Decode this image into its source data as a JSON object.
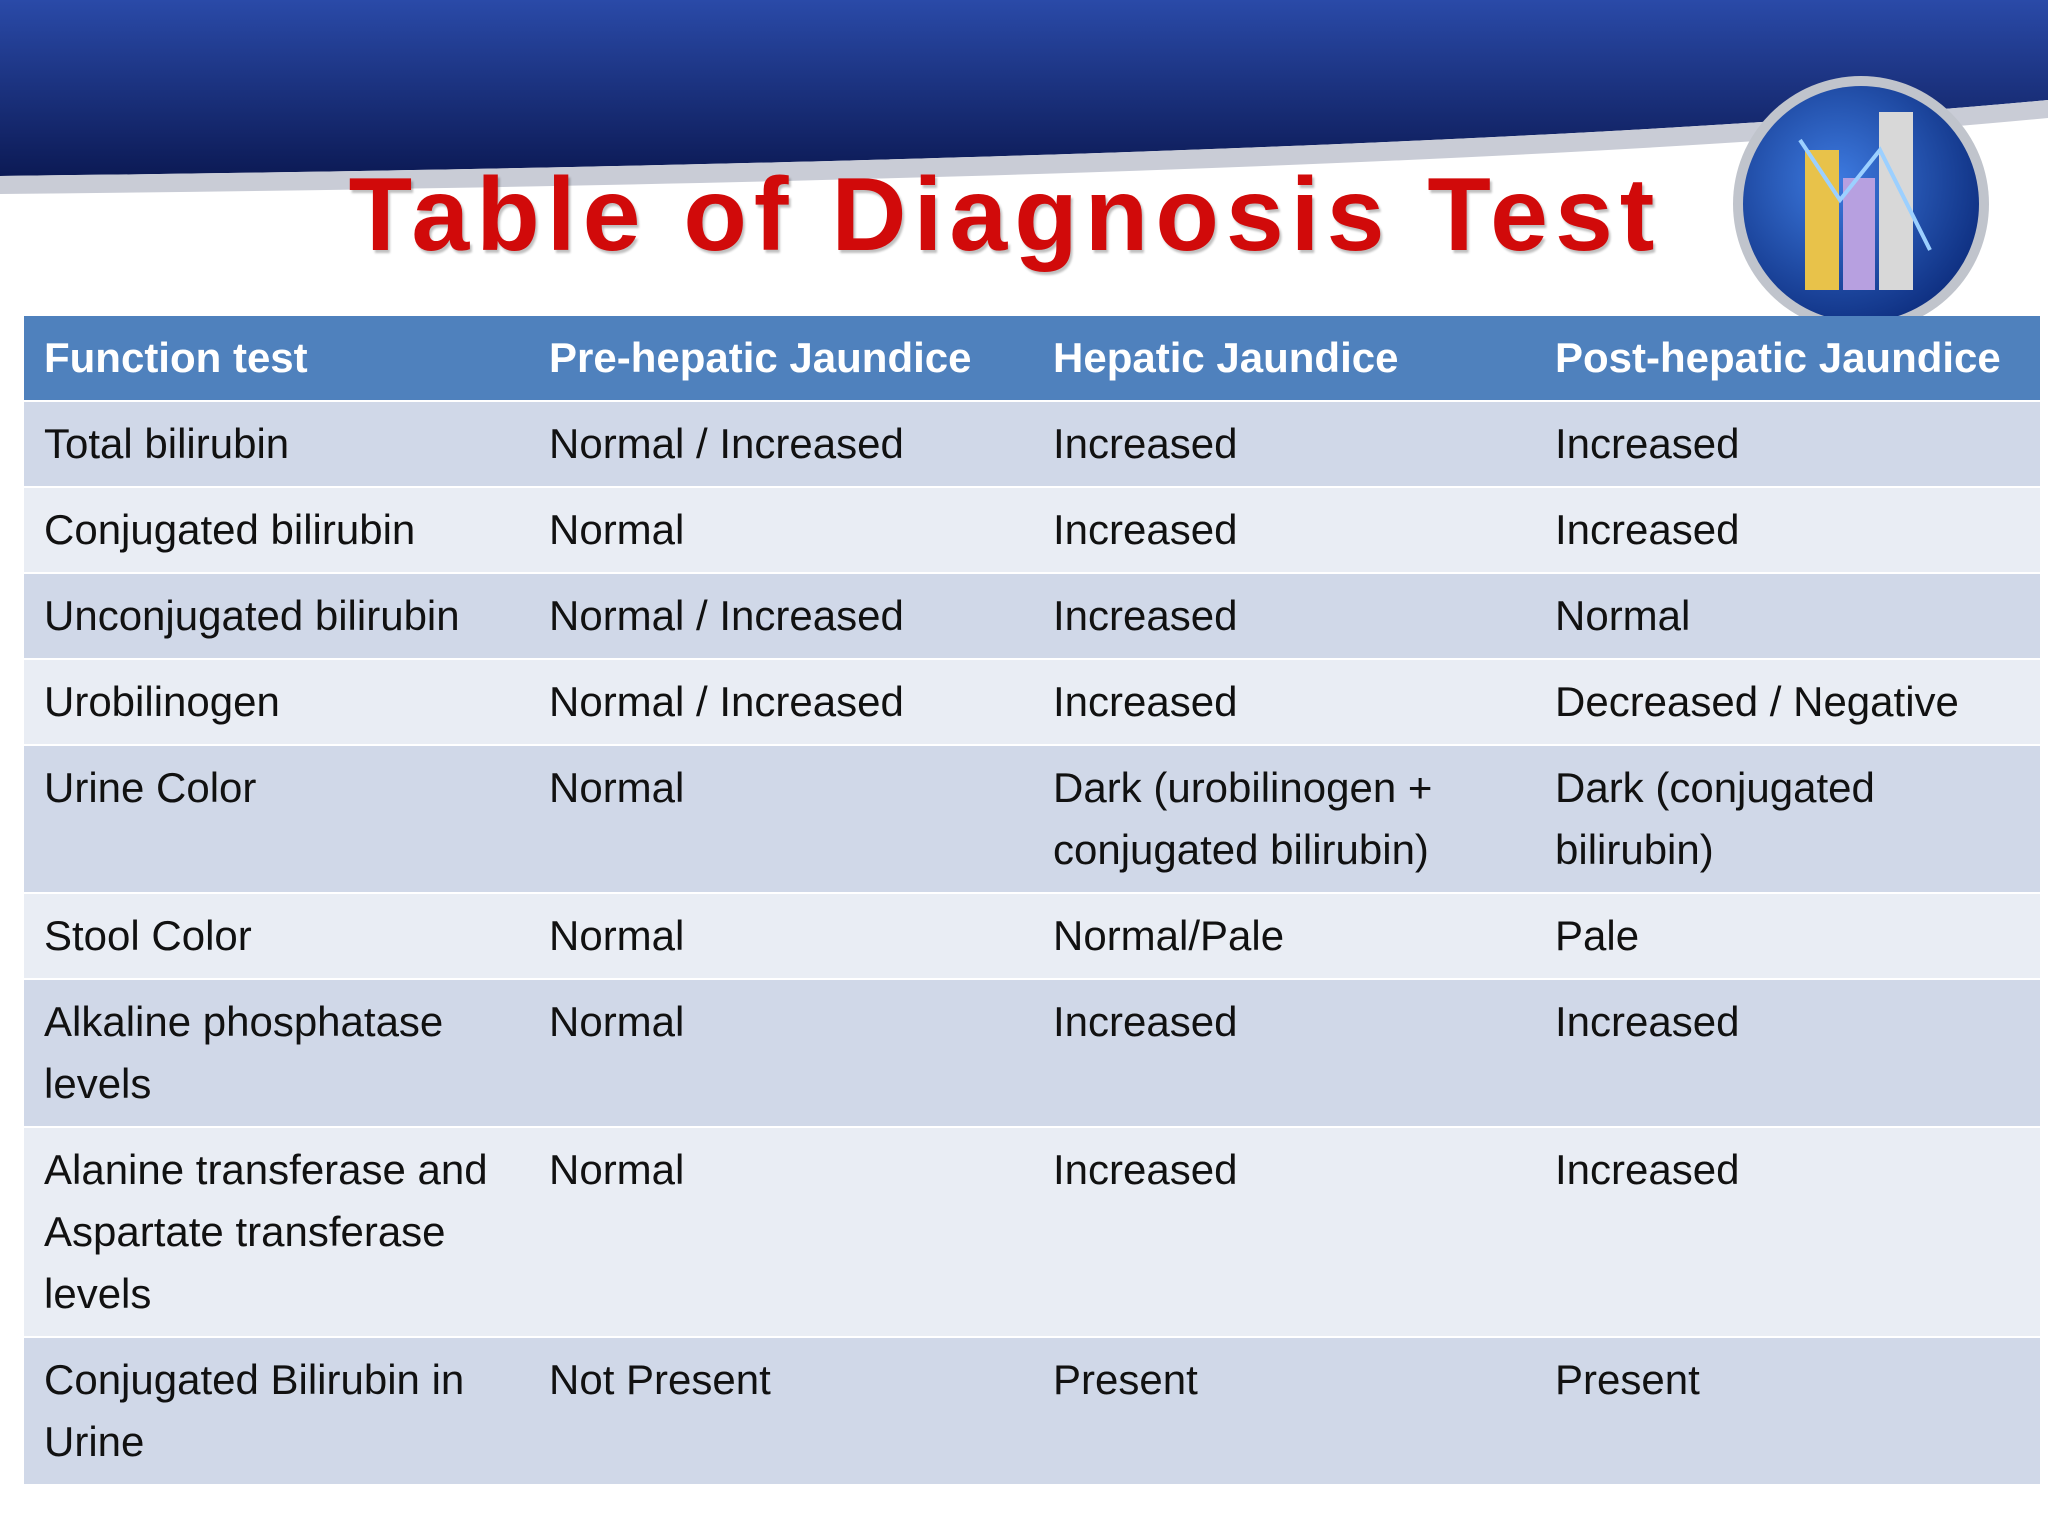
{
  "header": {
    "title": "Table of Diagnosis Test"
  },
  "table": {
    "columns": [
      "Function test",
      "Pre-hepatic Jaundice",
      "Hepatic Jaundice",
      "Post-hepatic Jaundice"
    ],
    "rows": [
      [
        "Total bilirubin",
        "Normal / Increased",
        "Increased",
        "Increased"
      ],
      [
        "Conjugated bilirubin",
        "Normal",
        "Increased",
        "Increased"
      ],
      [
        "Unconjugated bilirubin",
        "Normal / Increased",
        "Increased",
        "Normal"
      ],
      [
        "Urobilinogen",
        "Normal / Increased",
        "Increased",
        "Decreased / Negative"
      ],
      [
        "Urine Color",
        "Normal",
        "Dark (urobilinogen + conjugated bilirubin)",
        "Dark (conjugated bilirubin)"
      ],
      [
        "Stool Color",
        "Normal",
        "Normal/Pale",
        "Pale"
      ],
      [
        "Alkaline phosphatase levels",
        "Normal",
        "Increased",
        "Increased"
      ],
      [
        "Alanine transferase and Aspartate transferase levels",
        "Normal",
        "Increased",
        "Increased"
      ],
      [
        "Conjugated Bilirubin in Urine",
        "Not Present",
        "Present",
        "Present"
      ]
    ]
  }
}
